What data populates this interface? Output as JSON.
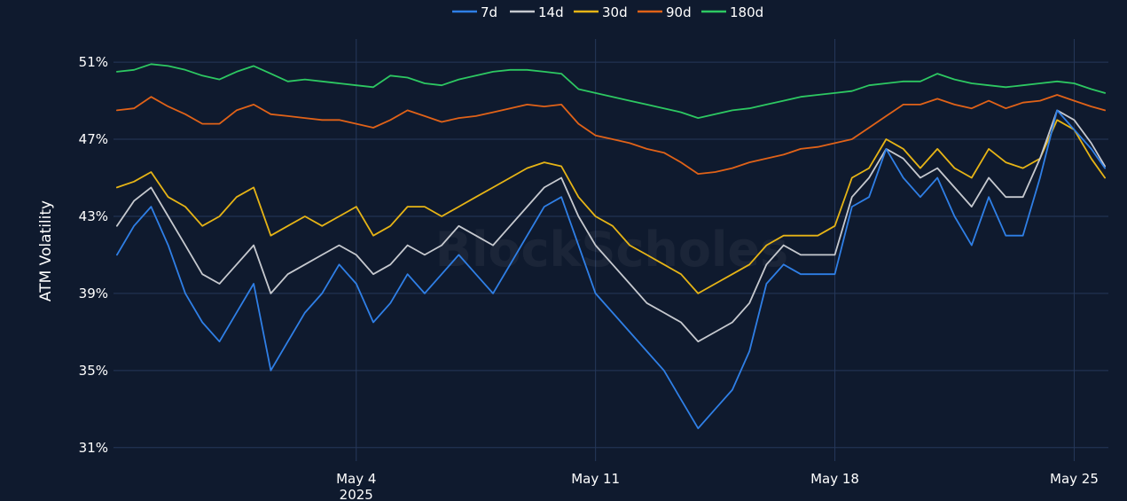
{
  "chart_data": {
    "type": "line",
    "ylabel": "ATM Volatility",
    "xlabel": "",
    "watermark": "BlockScholes",
    "ylim": [
      30.3,
      52.2
    ],
    "yticks": [
      31,
      35,
      39,
      43,
      47,
      51
    ],
    "ytick_labels": [
      "31%",
      "35%",
      "39%",
      "43%",
      "47%",
      "51%"
    ],
    "xlim_days": [
      -3.1,
      26.0
    ],
    "xticks": [
      {
        "label": "May 4",
        "sublabel": "2025",
        "day": 4
      },
      {
        "label": "May 11",
        "sublabel": "",
        "day": 11
      },
      {
        "label": "May 18",
        "sublabel": "",
        "day": 18
      },
      {
        "label": "May 25",
        "sublabel": "",
        "day": 25
      }
    ],
    "grid": true,
    "legend_position": "top-center",
    "x_day": [
      -3.0,
      -2.5,
      -2.0,
      -1.5,
      -1.0,
      -0.5,
      0.0,
      0.5,
      1.0,
      1.5,
      2.0,
      2.5,
      3.0,
      3.5,
      4.0,
      4.5,
      5.0,
      5.5,
      6.0,
      6.5,
      7.0,
      7.5,
      8.0,
      8.5,
      9.0,
      9.5,
      10.0,
      10.5,
      11.0,
      11.5,
      12.0,
      12.5,
      13.0,
      13.5,
      14.0,
      14.5,
      15.0,
      15.5,
      16.0,
      16.5,
      17.0,
      17.5,
      18.0,
      18.5,
      19.0,
      19.5,
      20.0,
      20.5,
      21.0,
      21.5,
      22.0,
      22.5,
      23.0,
      23.5,
      24.0,
      24.5,
      25.0,
      25.5,
      25.9
    ],
    "series": [
      {
        "name": "7d",
        "color": "#2f7fe6",
        "values": [
          41.0,
          42.5,
          43.5,
          41.5,
          39.0,
          37.5,
          36.5,
          38.0,
          39.5,
          35.0,
          36.5,
          38.0,
          39.0,
          40.5,
          39.5,
          37.5,
          38.5,
          40.0,
          39.0,
          40.0,
          41.0,
          40.0,
          39.0,
          40.5,
          42.0,
          43.5,
          44.0,
          41.5,
          39.0,
          38.0,
          37.0,
          36.0,
          35.0,
          33.5,
          32.0,
          33.0,
          34.0,
          36.0,
          39.5,
          40.5,
          40.0,
          40.0,
          40.0,
          43.5,
          44.0,
          46.5,
          45.0,
          44.0,
          45.0,
          43.0,
          41.5,
          44.0,
          42.0,
          42.0,
          45.0,
          48.5,
          47.5,
          46.5,
          45.5
        ]
      },
      {
        "name": "14d",
        "color": "#c6c9cf",
        "values": [
          42.5,
          43.8,
          44.5,
          43.0,
          41.5,
          40.0,
          39.5,
          40.5,
          41.5,
          39.0,
          40.0,
          40.5,
          41.0,
          41.5,
          41.0,
          40.0,
          40.5,
          41.5,
          41.0,
          41.5,
          42.5,
          42.0,
          41.5,
          42.5,
          43.5,
          44.5,
          45.0,
          43.0,
          41.5,
          40.5,
          39.5,
          38.5,
          38.0,
          37.5,
          36.5,
          37.0,
          37.5,
          38.5,
          40.5,
          41.5,
          41.0,
          41.0,
          41.0,
          44.0,
          45.0,
          46.5,
          46.0,
          45.0,
          45.5,
          44.5,
          43.5,
          45.0,
          44.0,
          44.0,
          46.0,
          48.5,
          48.0,
          46.8,
          45.6
        ]
      },
      {
        "name": "30d",
        "color": "#e6b416",
        "values": [
          44.5,
          44.8,
          45.3,
          44.0,
          43.5,
          42.5,
          43.0,
          44.0,
          44.5,
          42.0,
          42.5,
          43.0,
          42.5,
          43.0,
          43.5,
          42.0,
          42.5,
          43.5,
          43.5,
          43.0,
          43.5,
          44.0,
          44.5,
          45.0,
          45.5,
          45.8,
          45.6,
          44.0,
          43.0,
          42.5,
          41.5,
          41.0,
          40.5,
          40.0,
          39.0,
          39.5,
          40.0,
          40.5,
          41.5,
          42.0,
          42.0,
          42.0,
          42.5,
          45.0,
          45.5,
          47.0,
          46.5,
          45.5,
          46.5,
          45.5,
          45.0,
          46.5,
          45.8,
          45.5,
          46.0,
          48.0,
          47.5,
          46.0,
          45.0
        ]
      },
      {
        "name": "90d",
        "color": "#e06218",
        "values": [
          48.5,
          48.6,
          49.2,
          48.7,
          48.3,
          47.8,
          47.8,
          48.5,
          48.8,
          48.3,
          48.2,
          48.1,
          48.0,
          48.0,
          47.8,
          47.6,
          48.0,
          48.5,
          48.2,
          47.9,
          48.1,
          48.2,
          48.4,
          48.6,
          48.8,
          48.7,
          48.8,
          47.8,
          47.2,
          47.0,
          46.8,
          46.5,
          46.3,
          45.8,
          45.2,
          45.3,
          45.5,
          45.8,
          46.0,
          46.2,
          46.5,
          46.6,
          46.8,
          47.0,
          47.6,
          48.2,
          48.8,
          48.8,
          49.1,
          48.8,
          48.6,
          49.0,
          48.6,
          48.9,
          49.0,
          49.3,
          49.0,
          48.7,
          48.5
        ]
      },
      {
        "name": "180d",
        "color": "#2dc862",
        "values": [
          50.5,
          50.6,
          50.9,
          50.8,
          50.6,
          50.3,
          50.1,
          50.5,
          50.8,
          50.4,
          50.0,
          50.1,
          50.0,
          49.9,
          49.8,
          49.7,
          50.3,
          50.2,
          49.9,
          49.8,
          50.1,
          50.3,
          50.5,
          50.6,
          50.6,
          50.5,
          50.4,
          49.6,
          49.4,
          49.2,
          49.0,
          48.8,
          48.6,
          48.4,
          48.1,
          48.3,
          48.5,
          48.6,
          48.8,
          49.0,
          49.2,
          49.3,
          49.4,
          49.5,
          49.8,
          49.9,
          50.0,
          50.0,
          50.4,
          50.1,
          49.9,
          49.8,
          49.7,
          49.8,
          49.9,
          50.0,
          49.9,
          49.6,
          49.4
        ]
      }
    ]
  }
}
